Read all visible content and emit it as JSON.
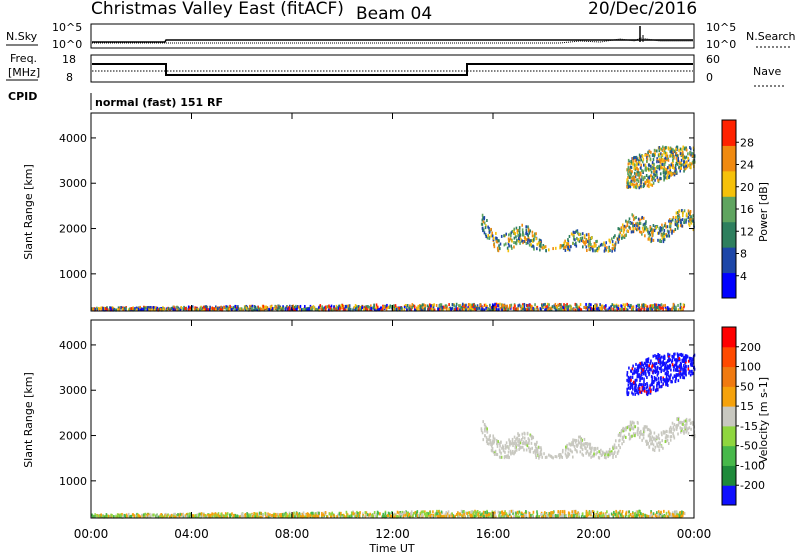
{
  "header": {
    "title": "Christmas Valley East (fitACF)",
    "beam": "Beam 04",
    "date": "20/Dec/2016"
  },
  "top_panels": {
    "nsky_label": "N.Sky",
    "nsearch_label": "N.Search",
    "noise_ticks": [
      "10^5",
      "10^0"
    ],
    "freq_label_line1": "Freq.",
    "freq_label_line2": "[MHz]",
    "freq_ticks": [
      "18",
      "8"
    ],
    "nave_ticks": [
      "60",
      "0"
    ],
    "nave_label": "Nave",
    "cpid_label": "CPID",
    "cpid_text": "normal (fast) 151 RF"
  },
  "chart_data": [
    {
      "type": "heatmap",
      "name": "Power",
      "ylabel": "Slant Range [km]",
      "xlabel": "",
      "x_ticks": [
        "00:00",
        "04:00",
        "08:00",
        "12:00",
        "16:00",
        "20:00",
        "00:00"
      ],
      "xlim": [
        0,
        24
      ],
      "ylim": [
        180,
        4550
      ],
      "y_ticks": [
        1000,
        2000,
        3000,
        4000
      ],
      "colorbar": {
        "label": "Power [dB]",
        "ticks": [
          "28",
          "24",
          "20",
          "16",
          "12",
          "8",
          "4"
        ],
        "colors": [
          "#0000ff",
          "#1c46a8",
          "#2e7f5e",
          "#5fa45f",
          "#f5c10a",
          "#f08a10",
          "#ff2200"
        ]
      },
      "regions": [
        {
          "t0": 0.0,
          "t1": 23.6,
          "r0": 200,
          "r1": 330,
          "level": "mixed-dense"
        },
        {
          "t0": 15.5,
          "t1": 24.0,
          "r0": 1500,
          "r1": 2400,
          "level": "mid"
        },
        {
          "t0": 21.3,
          "t1": 24.0,
          "r0": 2900,
          "r1": 3800,
          "level": "mid"
        }
      ]
    },
    {
      "type": "heatmap",
      "name": "Velocity",
      "ylabel": "Slant Range [km]",
      "xlabel": "Time UT",
      "x_ticks": [
        "00:00",
        "04:00",
        "08:00",
        "12:00",
        "16:00",
        "20:00",
        "00:00"
      ],
      "xlim": [
        0,
        24
      ],
      "ylim": [
        180,
        4550
      ],
      "y_ticks": [
        1000,
        2000,
        3000,
        4000
      ],
      "colorbar": {
        "label": "Velocity [m s-1]",
        "ticks": [
          "200",
          "100",
          "50",
          "15",
          "-15",
          "-50",
          "-100",
          "-200"
        ],
        "colors": [
          "#1010ff",
          "#1e8a3a",
          "#47b84a",
          "#8fd63f",
          "#c8c8c0",
          "#f5a20c",
          "#f07a10",
          "#ff4a00",
          "#ff0000"
        ]
      },
      "regions": [
        {
          "t0": 0.0,
          "t1": 23.6,
          "r0": 200,
          "r1": 330,
          "level": "green-orange"
        },
        {
          "t0": 15.5,
          "t1": 24.0,
          "r0": 1500,
          "r1": 2400,
          "level": "grey"
        },
        {
          "t0": 21.3,
          "t1": 24.0,
          "r0": 2900,
          "r1": 3800,
          "level": "blue"
        }
      ]
    }
  ]
}
